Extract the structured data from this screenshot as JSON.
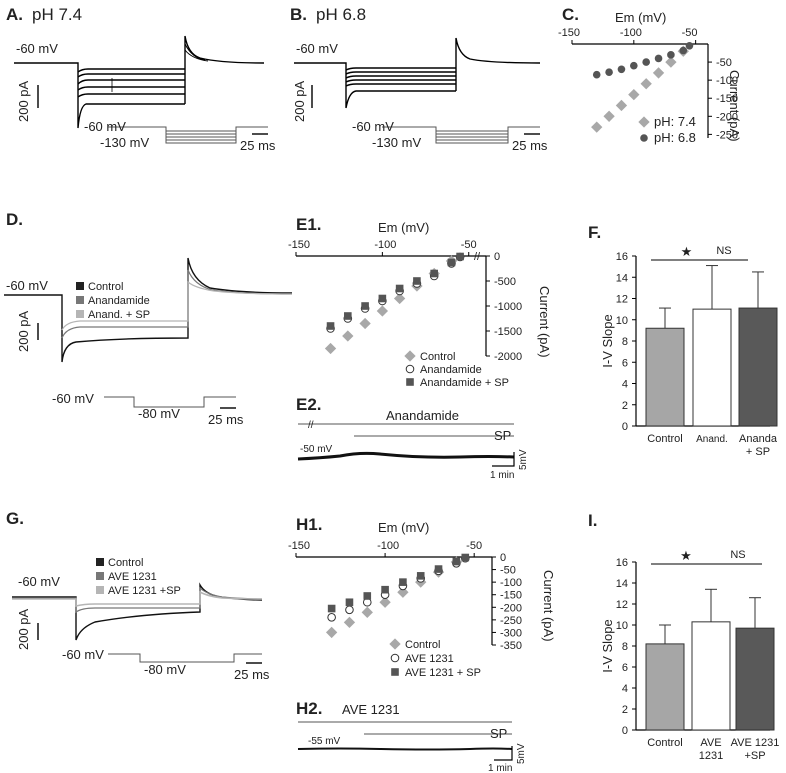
{
  "panelA": {
    "label": "A.",
    "title": "pH 7.4",
    "hold": "-60 mV",
    "scale_y": "200 pA",
    "step_from": "-60 mV",
    "step_to": "-130 mV",
    "scale_x": "25 ms"
  },
  "panelB": {
    "label": "B.",
    "title": "pH 6.8",
    "hold": "-60 mV",
    "scale_y": "200 pA",
    "step_from": "-60 mV",
    "step_to": "-130 mV",
    "scale_x": "25 ms"
  },
  "panelD": {
    "label": "D.",
    "hold": "-60 mV",
    "scale_y": "200 pA",
    "legend": [
      "Control",
      "Anandamide",
      "Anand. + SP"
    ],
    "step_from": "-60 mV",
    "step_to": "-80 mV",
    "scale_x": "25 ms"
  },
  "panelE2": {
    "label": "E2.",
    "drug": "Anandamide",
    "sp": "SP",
    "hold": "-50 mV",
    "scale_y": "5mV",
    "scale_x": "1 min"
  },
  "panelG": {
    "label": "G.",
    "hold": "-60 mV",
    "scale_y": "200 pA",
    "legend": [
      "Control",
      "AVE 1231",
      "AVE 1231 +SP"
    ],
    "step_from": "-60 mV",
    "step_to": "-80 mV",
    "scale_x": "25 ms"
  },
  "panelH2": {
    "label": "H2.",
    "drug": "AVE 1231",
    "sp": "SP",
    "hold": "-55 mV",
    "scale_y": "5mV",
    "scale_x": "1 min"
  },
  "chart_data": [
    {
      "id": "C",
      "label": "C.",
      "type": "scatter",
      "xlabel": "Em (mV)",
      "ylabel": "Current (pA)",
      "xlim": [
        -150,
        -40
      ],
      "ylim": [
        -260,
        0
      ],
      "xticks": [
        -150,
        -100,
        -50
      ],
      "yticks": [
        -50,
        -100,
        -150,
        -200,
        -250
      ],
      "series": [
        {
          "name": "pH: 7.4",
          "color": "#a8a8a8",
          "marker": "diamond",
          "x": [
            -130,
            -120,
            -110,
            -100,
            -90,
            -80,
            -70,
            -60
          ],
          "y": [
            -230,
            -200,
            -170,
            -140,
            -110,
            -80,
            -50,
            -20
          ]
        },
        {
          "name": "pH: 6.8",
          "color": "#555555",
          "marker": "circle",
          "x": [
            -130,
            -120,
            -110,
            -100,
            -90,
            -80,
            -70,
            -60,
            -55
          ],
          "y": [
            -85,
            -78,
            -70,
            -60,
            -50,
            -40,
            -30,
            -18,
            -5
          ]
        }
      ]
    },
    {
      "id": "E1",
      "label": "E1.",
      "type": "scatter",
      "xlabel": "Em (mV)",
      "ylabel": "Current (pA)",
      "xlim": [
        -150,
        -40
      ],
      "ylim": [
        -2000,
        0
      ],
      "xticks": [
        -150,
        -100,
        -50
      ],
      "yticks": [
        0,
        -500,
        -1000,
        -1500,
        -2000
      ],
      "series": [
        {
          "name": "Control",
          "color": "#a8a8a8",
          "marker": "diamond",
          "x": [
            -130,
            -120,
            -110,
            -100,
            -90,
            -80,
            -70,
            -60
          ],
          "y": [
            -1850,
            -1600,
            -1350,
            -1100,
            -850,
            -600,
            -350,
            -100
          ]
        },
        {
          "name": "Anandamide",
          "color": "#555555",
          "marker": "open-circle",
          "x": [
            -130,
            -120,
            -110,
            -100,
            -90,
            -80,
            -70,
            -60,
            -55
          ],
          "y": [
            -1450,
            -1250,
            -1050,
            -900,
            -700,
            -550,
            -400,
            -150,
            -20
          ]
        },
        {
          "name": "Anandamide + SP",
          "color": "#555555",
          "marker": "square",
          "x": [
            -130,
            -120,
            -110,
            -100,
            -90,
            -80,
            -70,
            -60,
            -55
          ],
          "y": [
            -1400,
            -1200,
            -1000,
            -850,
            -650,
            -500,
            -350,
            -130,
            -10
          ]
        }
      ]
    },
    {
      "id": "F",
      "label": "F.",
      "type": "bar",
      "ylabel": "I-V Slope",
      "ylim": [
        0,
        16
      ],
      "yticks": [
        0,
        2,
        4,
        6,
        8,
        10,
        12,
        14,
        16
      ],
      "categories": [
        "Control",
        "Anand.",
        "Ananda + SP"
      ],
      "values": [
        9.2,
        11.0,
        11.1
      ],
      "errors": [
        1.9,
        4.1,
        3.4
      ],
      "colors": [
        "#a6a6a6",
        "#ffffff",
        "#595959"
      ],
      "annotations": [
        "★",
        "NS"
      ]
    },
    {
      "id": "H1",
      "label": "H1.",
      "type": "scatter",
      "xlabel": "Em (mV)",
      "ylabel": "Current (pA)",
      "xlim": [
        -150,
        -40
      ],
      "ylim": [
        -350,
        0
      ],
      "xticks": [
        -150,
        -100,
        -50
      ],
      "yticks": [
        0,
        -50,
        -100,
        -150,
        -200,
        -250,
        -300,
        -350
      ],
      "series": [
        {
          "name": "Control",
          "color": "#a8a8a8",
          "marker": "diamond",
          "x": [
            -130,
            -120,
            -110,
            -100,
            -90,
            -80,
            -70,
            -60
          ],
          "y": [
            -300,
            -260,
            -220,
            -180,
            -140,
            -100,
            -60,
            -20
          ]
        },
        {
          "name": "AVE 1231",
          "color": "#555555",
          "marker": "open-circle",
          "x": [
            -130,
            -120,
            -110,
            -100,
            -90,
            -80,
            -70,
            -60,
            -55
          ],
          "y": [
            -240,
            -210,
            -180,
            -150,
            -115,
            -85,
            -55,
            -25,
            -5
          ]
        },
        {
          "name": "AVE 1231 + SP",
          "color": "#555555",
          "marker": "square",
          "x": [
            -130,
            -120,
            -110,
            -100,
            -90,
            -80,
            -70,
            -60,
            -55
          ],
          "y": [
            -205,
            -180,
            -155,
            -130,
            -100,
            -75,
            -48,
            -18,
            -2
          ]
        }
      ]
    },
    {
      "id": "I",
      "label": "I.",
      "type": "bar",
      "ylabel": "I-V Slope",
      "ylim": [
        0,
        16
      ],
      "yticks": [
        0,
        2,
        4,
        6,
        8,
        10,
        12,
        14,
        16
      ],
      "categories": [
        "Control",
        "AVE 1231",
        "AVE 1231 +SP"
      ],
      "values": [
        8.2,
        10.3,
        9.7
      ],
      "errors": [
        1.8,
        3.1,
        2.9
      ],
      "colors": [
        "#a6a6a6",
        "#ffffff",
        "#595959"
      ],
      "annotations": [
        "★",
        "NS"
      ]
    }
  ]
}
